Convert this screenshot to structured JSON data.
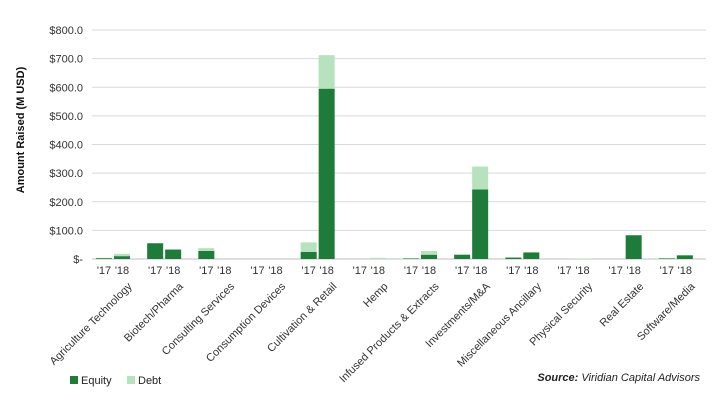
{
  "chart_data": {
    "type": "bar",
    "stacked": true,
    "ylabel": "Amount Raised (M USD)",
    "ylim": [
      0,
      800
    ],
    "yticks": [
      {
        "value": 0,
        "label": "$-"
      },
      {
        "value": 100,
        "label": "$100.0"
      },
      {
        "value": 200,
        "label": "$200.0"
      },
      {
        "value": 300,
        "label": "$300.0"
      },
      {
        "value": 400,
        "label": "$400.0"
      },
      {
        "value": 500,
        "label": "$500.0"
      },
      {
        "value": 600,
        "label": "$600.0"
      },
      {
        "value": 700,
        "label": "$700.0"
      },
      {
        "value": 800,
        "label": "$800.0"
      }
    ],
    "grid": true,
    "year_labels": [
      "'17",
      "'18"
    ],
    "categories": [
      "Agriculture Technology",
      "Biotech/Pharma",
      "Consulting Services",
      "Consumption Devices",
      "Cultivation & Retail",
      "Hemp",
      "Infused Products & Extracts",
      "Investments/M&A",
      "Miscellaneous Ancillary",
      "Physical Security",
      "Real Estate",
      "Software/Media"
    ],
    "series": [
      {
        "name": "Equity",
        "color": "#1e7b3a",
        "values_2017": [
          3,
          55,
          28,
          0,
          25,
          0,
          2,
          15,
          5,
          0,
          0,
          2
        ],
        "values_2018": [
          10,
          33,
          0,
          0,
          595,
          0,
          15,
          243,
          23,
          0,
          83,
          13
        ]
      },
      {
        "name": "Debt",
        "color": "#b6e2bd",
        "values_2017": [
          1,
          0,
          10,
          0,
          33,
          0,
          0,
          0,
          0,
          0,
          0,
          1
        ],
        "values_2018": [
          8,
          0,
          0,
          0,
          117,
          4,
          13,
          80,
          0,
          2,
          0,
          1
        ]
      }
    ],
    "legend_position": "bottom-left",
    "source": {
      "label": "Source:",
      "text": " Viridian Capital Advisors"
    }
  }
}
